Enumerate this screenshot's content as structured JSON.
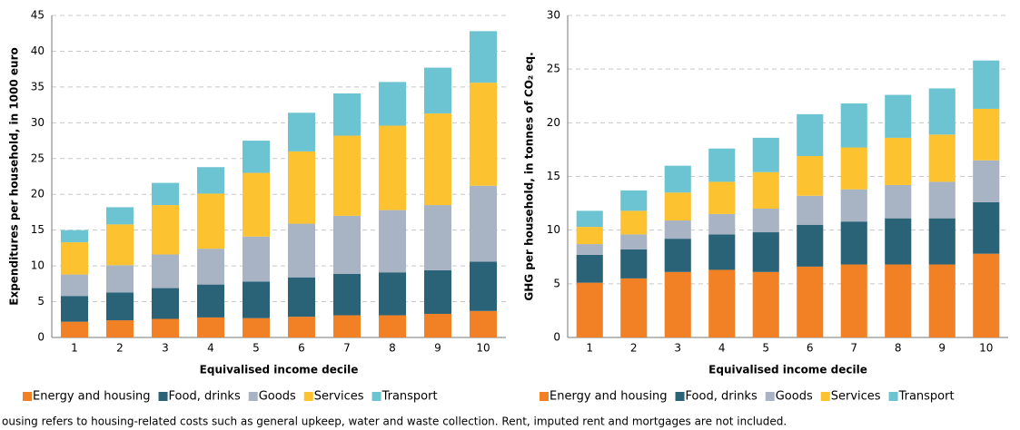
{
  "chart_data": [
    {
      "type": "stacked_bar",
      "y_label": "Expenditures per household, in  1000 euro",
      "x_label": "Equivalised income decile",
      "categories": [
        "1",
        "2",
        "3",
        "4",
        "5",
        "6",
        "7",
        "8",
        "9",
        "10"
      ],
      "series": [
        {
          "name": "Energy and housing",
          "color": "#f28024",
          "values": [
            2.2,
            2.4,
            2.6,
            2.8,
            2.7,
            2.9,
            3.1,
            3.1,
            3.3,
            3.7
          ]
        },
        {
          "name": "Food, drinks",
          "color": "#2a6378",
          "values": [
            3.6,
            3.9,
            4.3,
            4.6,
            5.1,
            5.5,
            5.8,
            6.0,
            6.1,
            6.9
          ]
        },
        {
          "name": "Goods",
          "color": "#a8b4c4",
          "values": [
            3.0,
            3.8,
            4.7,
            5.0,
            6.3,
            7.5,
            8.1,
            8.7,
            9.1,
            10.6
          ]
        },
        {
          "name": "Services",
          "color": "#fcc22f",
          "values": [
            4.5,
            5.7,
            6.9,
            7.7,
            8.9,
            10.1,
            11.2,
            11.8,
            12.8,
            14.4
          ]
        },
        {
          "name": "Transport",
          "color": "#6cc4d2",
          "values": [
            1.7,
            2.4,
            3.1,
            3.7,
            4.5,
            5.4,
            5.9,
            6.1,
            6.4,
            7.2
          ]
        }
      ],
      "ylim": [
        0,
        45
      ],
      "yticks": [
        0,
        5,
        10,
        15,
        20,
        25,
        30,
        35,
        40,
        45
      ],
      "grid": true,
      "legend": "bottom"
    },
    {
      "type": "stacked_bar",
      "y_label": "GHG per household, in tonnes of CO₂ eq.",
      "x_label": "Equivalised income decile",
      "categories": [
        "1",
        "2",
        "3",
        "4",
        "5",
        "6",
        "7",
        "8",
        "9",
        "10"
      ],
      "series": [
        {
          "name": "Energy and housing",
          "color": "#f28024",
          "values": [
            5.1,
            5.5,
            6.1,
            6.3,
            6.1,
            6.6,
            6.8,
            6.8,
            6.8,
            7.8
          ]
        },
        {
          "name": "Food, drinks",
          "color": "#2a6378",
          "values": [
            2.6,
            2.7,
            3.1,
            3.3,
            3.7,
            3.9,
            4.0,
            4.3,
            4.3,
            4.8
          ]
        },
        {
          "name": "Goods",
          "color": "#a8b4c4",
          "values": [
            1.0,
            1.4,
            1.7,
            1.9,
            2.2,
            2.7,
            3.0,
            3.1,
            3.4,
            3.9
          ]
        },
        {
          "name": "Services",
          "color": "#fcc22f",
          "values": [
            1.6,
            2.2,
            2.6,
            3.0,
            3.4,
            3.7,
            3.9,
            4.4,
            4.4,
            4.8
          ]
        },
        {
          "name": "Transport",
          "color": "#6cc4d2",
          "values": [
            1.5,
            1.9,
            2.5,
            3.1,
            3.2,
            3.9,
            4.1,
            4.0,
            4.3,
            4.5
          ]
        }
      ],
      "ylim": [
        0,
        30
      ],
      "yticks": [
        0,
        5,
        10,
        15,
        20,
        25,
        30
      ],
      "grid": true,
      "legend": "bottom"
    }
  ],
  "footnote": "ousing refers to housing-related costs such as general upkeep, water and waste collection. Rent, imputed rent and mortgages are not included."
}
